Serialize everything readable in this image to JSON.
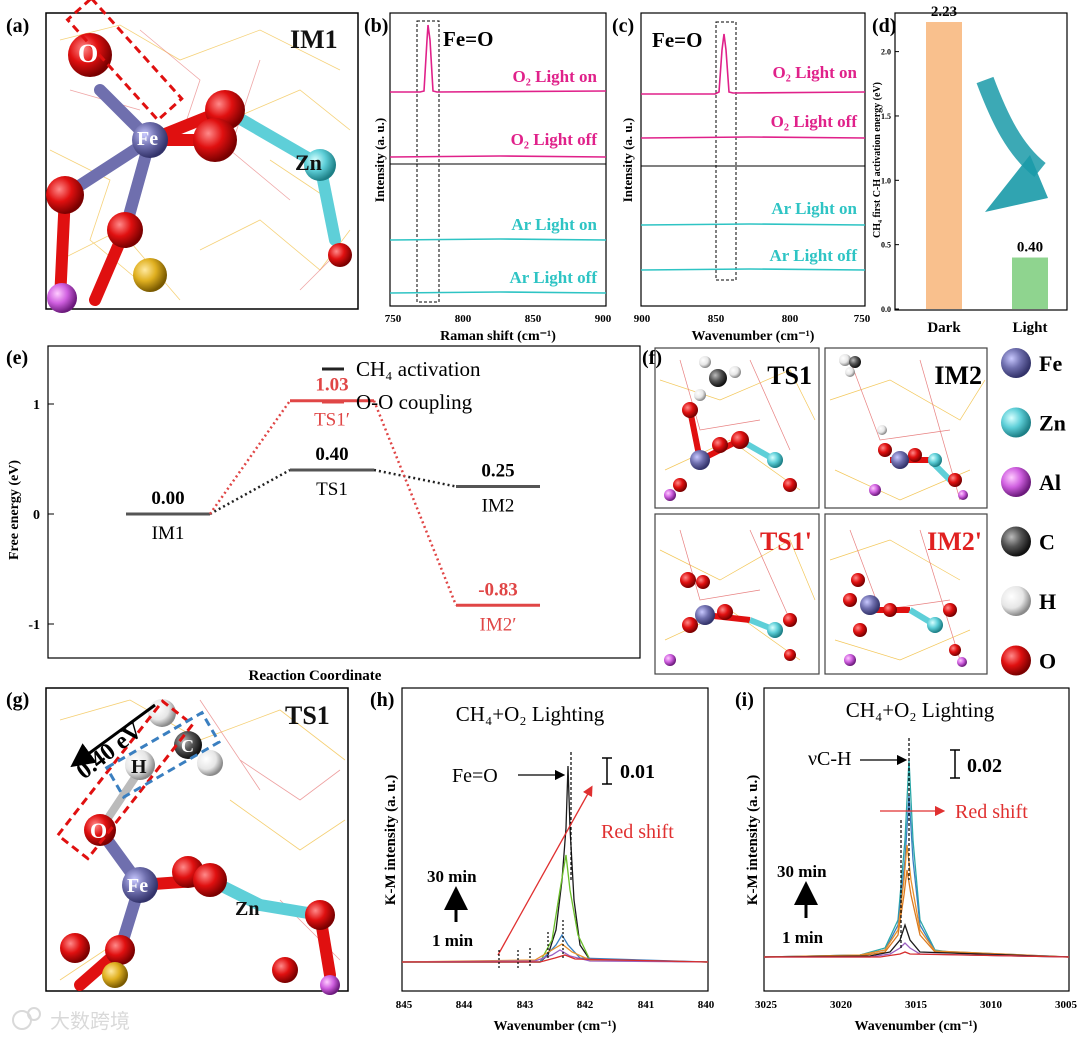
{
  "panels": {
    "a": "(a)",
    "b": "(b)",
    "c": "(c)",
    "d": "(d)",
    "e": "(e)",
    "f": "(f)",
    "g": "(g)",
    "h": "(h)",
    "i": "(i)"
  },
  "a": {
    "title": "IM1",
    "atoms": {
      "O": "O",
      "Fe": "Fe",
      "Zn": "Zn"
    }
  },
  "b": {
    "peak_label": "Fe=O",
    "traces": [
      "O₂ Light on",
      "O₂ Light off",
      "Ar Light on",
      "Ar Light off"
    ],
    "ylabel": "Intensity (a. u.)",
    "xlabel": "Raman shift (cm⁻¹)",
    "xticks": [
      "750",
      "800",
      "850",
      "900"
    ]
  },
  "c": {
    "peak_label": "Fe=O",
    "traces": [
      "O₂ Light on",
      "O₂ Light off",
      "Ar Light on",
      "Ar Light off"
    ],
    "ylabel": "Intensity (a. u.)",
    "xlabel": "Wavenumber (cm⁻¹)",
    "xticks": [
      "900",
      "850",
      "800",
      "750"
    ]
  },
  "g": {
    "title": "TS1",
    "barrier": "0.40 eV",
    "atoms": {
      "O": "O",
      "H": "H",
      "C": "C",
      "Fe": "Fe",
      "Zn": "Zn"
    }
  },
  "f": {
    "titles": [
      "TS1",
      "IM2",
      "TS1'",
      "IM2'"
    ],
    "legend": [
      "Fe",
      "Zn",
      "Al",
      "C",
      "H",
      "O"
    ],
    "legend_colors": [
      "#6f6fae",
      "#5ecfd8",
      "#d060e0",
      "#555555",
      "#e6e6e6",
      "#e01010"
    ]
  },
  "h": {
    "title": "CH₄+O₂ Lighting",
    "label": "Fe=O",
    "scale": "0.01",
    "shift": "Red shift",
    "time_top": "30 min",
    "time_bottom": "1 min",
    "ylabel": "K-M intensity (a. u.)",
    "xlabel": "Wavenumber (cm⁻¹)",
    "xticks": [
      "845",
      "844",
      "843",
      "842",
      "841",
      "840"
    ]
  },
  "i": {
    "title": "CH₄+O₂ Lighting",
    "label": "νC-H",
    "scale": "0.02",
    "shift": "Red shift",
    "time_top": "30 min",
    "time_bottom": "1 min",
    "ylabel": "K-M intensity (a. u.)",
    "xlabel": "Wavenumber (cm⁻¹)",
    "xticks": [
      "3025",
      "3020",
      "3015",
      "3010",
      "3005"
    ]
  },
  "watermark": "大数跨境",
  "chart_data": [
    {
      "type": "bar",
      "panel": "d",
      "categories": [
        "Dark",
        "Light"
      ],
      "values": [
        2.23,
        0.4
      ],
      "value_labels": [
        "2.23",
        "0.40"
      ],
      "colors": [
        "#f9c08d",
        "#8fd48f"
      ],
      "ylabel": "CH₄ first C-H activation energy (eV)",
      "ylim": [
        0,
        2.3
      ],
      "yticks": [
        "0.0",
        "0.5",
        "1.0",
        "1.5",
        "2.0"
      ]
    },
    {
      "type": "line",
      "panel": "e",
      "xlabel": "Reaction Coordinate",
      "ylabel": "Free energy (eV)",
      "ylim": [
        -1.3,
        1.3
      ],
      "yticks": [
        "-1",
        "0",
        "1"
      ],
      "series": [
        {
          "name": "CH₄ activation",
          "color": "#222222",
          "states": [
            "IM1",
            "TS1",
            "IM2"
          ],
          "values": [
            0.0,
            0.4,
            0.25
          ],
          "value_labels": [
            "0.00",
            "0.40",
            "0.25"
          ]
        },
        {
          "name": "O-O coupling",
          "color": "#e04646",
          "states": [
            "IM1",
            "TS1′",
            "IM2′"
          ],
          "values": [
            0.0,
            1.03,
            -0.83
          ],
          "value_labels": [
            "0.00",
            "1.03",
            "-0.83"
          ]
        }
      ]
    }
  ]
}
